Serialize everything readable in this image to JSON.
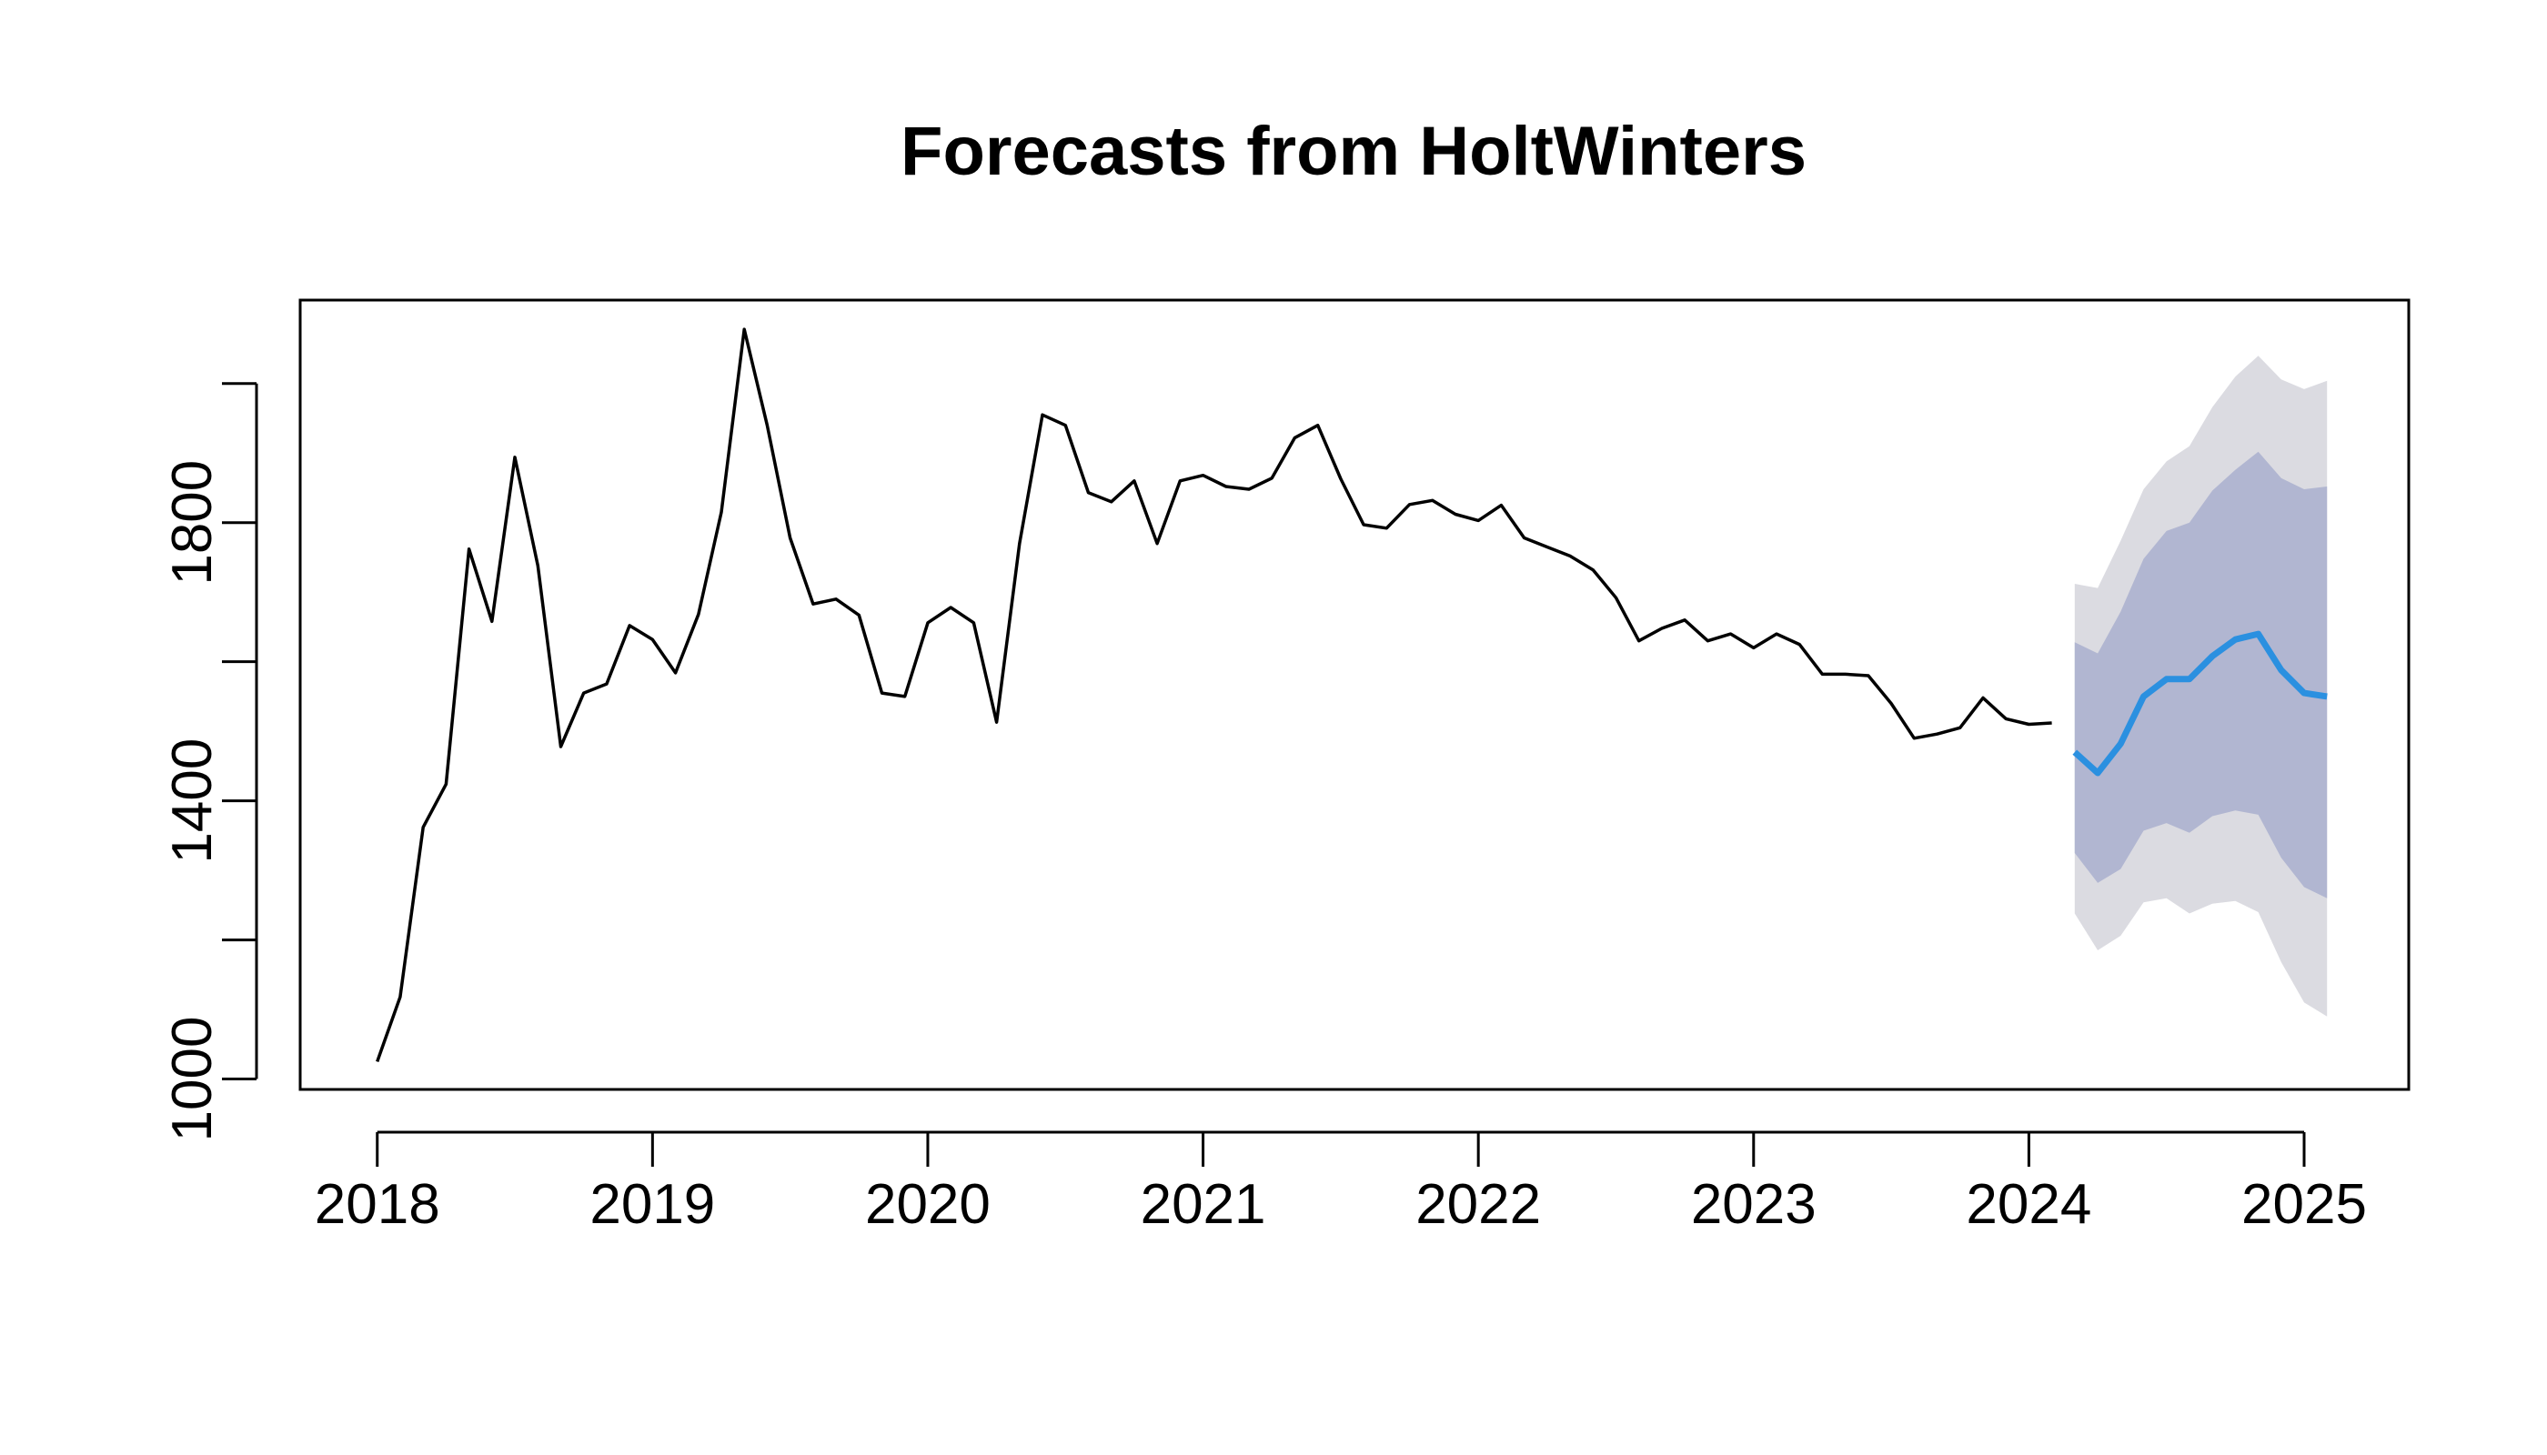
{
  "chart_data": {
    "type": "line",
    "title": "Forecasts from HoltWinters",
    "xlabel": "",
    "ylabel": "",
    "xlim": [
      2017.72,
      2025.38
    ],
    "ylim": [
      985,
      2120
    ],
    "x_ticks": [
      2018,
      2019,
      2020,
      2021,
      2022,
      2023,
      2024,
      2025
    ],
    "x_tick_labels": [
      "2018",
      "2019",
      "2020",
      "2021",
      "2022",
      "2023",
      "2024",
      "2025"
    ],
    "y_ticks": [
      1000,
      1200,
      1400,
      1600,
      1800,
      2000
    ],
    "y_tick_labels": [
      "1000",
      "",
      "1400",
      "",
      "1800",
      ""
    ],
    "grid": false,
    "legend": "none",
    "colors": {
      "observed": "#000000",
      "forecast_mean": "#2b90e0",
      "interval_80": "#b1b6d1",
      "interval_95": "#dbdbe1",
      "frame": "#000000"
    },
    "observed": {
      "start": 2018.0,
      "frequency": 12,
      "values": [
        1025,
        1118,
        1362,
        1424,
        1762,
        1658,
        1894,
        1738,
        1478,
        1555,
        1568,
        1652,
        1632,
        1584,
        1668,
        1815,
        2078,
        1940,
        1778,
        1683,
        1690,
        1667,
        1555,
        1550,
        1656,
        1678,
        1656,
        1513,
        1770,
        1955,
        1940,
        1843,
        1830,
        1860,
        1770,
        1860,
        1868,
        1852,
        1848,
        1864,
        1922,
        1940,
        1863,
        1797,
        1792,
        1826,
        1832,
        1812,
        1803,
        1825,
        1778,
        1765,
        1752,
        1732,
        1692,
        1630,
        1648,
        1660,
        1630,
        1640,
        1620,
        1640,
        1625,
        1582,
        1582,
        1580,
        1540,
        1490,
        1496,
        1505,
        1548,
        1518,
        1510,
        1512
      ]
    },
    "forecast": {
      "start": 2024.1667,
      "frequency": 12,
      "mean": [
        1470,
        1440,
        1482,
        1550,
        1575,
        1575,
        1608,
        1632,
        1640,
        1588,
        1555,
        1550
      ],
      "lo80": [
        1325,
        1282,
        1302,
        1357,
        1368,
        1354,
        1378,
        1386,
        1380,
        1318,
        1276,
        1260
      ],
      "hi80": [
        1628,
        1612,
        1672,
        1748,
        1788,
        1800,
        1846,
        1876,
        1902,
        1864,
        1848,
        1852
      ],
      "lo95": [
        1238,
        1185,
        1206,
        1254,
        1260,
        1238,
        1252,
        1256,
        1240,
        1168,
        1110,
        1090
      ],
      "hi95": [
        1712,
        1706,
        1774,
        1848,
        1888,
        1910,
        1966,
        2010,
        2040,
        2006,
        1992,
        2004
      ]
    }
  }
}
